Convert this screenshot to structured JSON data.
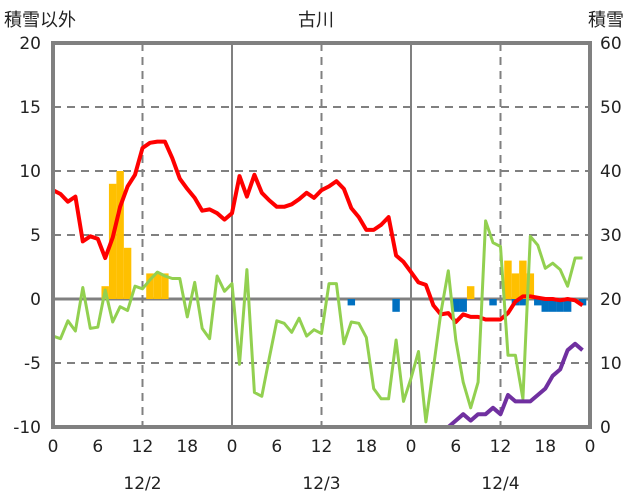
{
  "chart_data": {
    "type": "line",
    "title": "古川",
    "left_axis_label": "積雪以外",
    "right_axis_label": "積雪",
    "ylim_left": [
      -10,
      20
    ],
    "yticks_left": [
      -10,
      -5,
      0,
      5,
      10,
      15,
      20
    ],
    "ylim_right": [
      0,
      60
    ],
    "yticks_right": [
      0,
      10,
      20,
      30,
      40,
      50,
      60
    ],
    "xlim_hours": [
      0,
      72
    ],
    "xtick_labels": [
      "0",
      "6",
      "12",
      "18",
      "0",
      "6",
      "12",
      "18",
      "0",
      "6",
      "12",
      "18",
      "0"
    ],
    "date_labels": [
      "12/2",
      "12/3",
      "12/4"
    ],
    "grid": true,
    "series": [
      {
        "name": "red-line",
        "color": "#ff0000",
        "axis": "left",
        "kind": "line",
        "values": [
          8.5,
          8.2,
          7.6,
          8.0,
          4.5,
          4.9,
          4.7,
          3.2,
          4.8,
          7.2,
          8.8,
          9.7,
          11.8,
          12.2,
          12.3,
          12.3,
          11.0,
          9.4,
          8.6,
          7.9,
          6.9,
          7.0,
          6.7,
          6.2,
          6.7,
          9.6,
          8.0,
          9.7,
          8.3,
          7.7,
          7.2,
          7.2,
          7.4,
          7.8,
          8.3,
          7.9,
          8.5,
          8.8,
          9.2,
          8.6,
          7.1,
          6.4,
          5.4,
          5.4,
          5.8,
          6.4,
          3.4,
          2.9,
          2.1,
          1.3,
          1.1,
          -0.5,
          -1.2,
          -1.1,
          -1.8,
          -1.2,
          -1.4,
          -1.4,
          -1.6,
          -1.6,
          -1.6,
          -1.1,
          -0.2,
          0.2,
          0.2,
          0.1,
          0.0,
          0.0,
          -0.1,
          0.0,
          -0.1,
          -0.5
        ]
      },
      {
        "name": "green-line",
        "color": "#92d050",
        "axis": "left",
        "kind": "line",
        "values": [
          -2.9,
          -3.1,
          -1.7,
          -2.5,
          0.9,
          -2.3,
          -2.2,
          0.7,
          -1.8,
          -0.6,
          -0.9,
          1.0,
          0.8,
          1.5,
          2.1,
          1.8,
          1.6,
          1.6,
          -1.4,
          1.3,
          -2.3,
          -3.1,
          1.8,
          0.6,
          1.2,
          -5.1,
          2.3,
          -7.3,
          -7.6,
          -4.6,
          -1.7,
          -1.9,
          -2.6,
          -1.5,
          -2.9,
          -2.4,
          -2.7,
          1.2,
          1.2,
          -3.5,
          -1.8,
          -1.9,
          -3.0,
          -7.0,
          -7.8,
          -7.8,
          -3.2,
          -8.0,
          -6.2,
          -4.1,
          -9.6,
          -5.4,
          -1.1,
          2.2,
          -3.2,
          -6.5,
          -8.5,
          -6.5,
          6.1,
          4.4,
          4.1,
          -4.4,
          -4.4,
          -7.8,
          4.9,
          4.2,
          2.4,
          2.8,
          2.3,
          1.0,
          3.2,
          3.2
        ]
      },
      {
        "name": "orange-bars",
        "color": "#ffc000",
        "axis": "left",
        "kind": "bar",
        "points": [
          [
            7,
            1
          ],
          [
            8,
            9
          ],
          [
            9,
            10
          ],
          [
            10,
            4
          ],
          [
            13,
            2
          ],
          [
            14,
            2
          ],
          [
            15,
            2
          ],
          [
            56,
            1
          ],
          [
            61,
            3
          ],
          [
            62,
            2
          ],
          [
            63,
            3
          ],
          [
            64,
            2
          ]
        ]
      },
      {
        "name": "blue-bars",
        "color": "#0070c0",
        "axis": "left",
        "kind": "bar",
        "points": [
          [
            40,
            -0.5
          ],
          [
            46,
            -1
          ],
          [
            54,
            -1
          ],
          [
            55,
            -1
          ],
          [
            59,
            -0.5
          ],
          [
            62,
            -0.5
          ],
          [
            63,
            -0.5
          ],
          [
            65,
            -0.5
          ],
          [
            66,
            -1
          ],
          [
            67,
            -1
          ],
          [
            68,
            -1
          ],
          [
            69,
            -1
          ],
          [
            71,
            -0.5
          ]
        ]
      },
      {
        "name": "purple-snow-depth",
        "color": "#7030a0",
        "axis": "right",
        "kind": "line",
        "values": [
          0,
          0,
          0,
          0,
          0,
          0,
          0,
          0,
          0,
          0,
          0,
          0,
          0,
          0,
          0,
          0,
          0,
          0,
          0,
          0,
          0,
          0,
          0,
          0,
          0,
          0,
          0,
          0,
          0,
          0,
          0,
          0,
          0,
          0,
          0,
          0,
          0,
          0,
          0,
          0,
          0,
          0,
          0,
          0,
          0,
          0,
          0,
          0,
          0,
          0,
          0,
          0,
          0,
          0,
          1,
          2,
          1,
          2,
          2,
          3,
          2,
          5,
          4,
          4,
          4,
          5,
          6,
          8,
          9,
          12,
          13,
          12
        ]
      }
    ]
  }
}
